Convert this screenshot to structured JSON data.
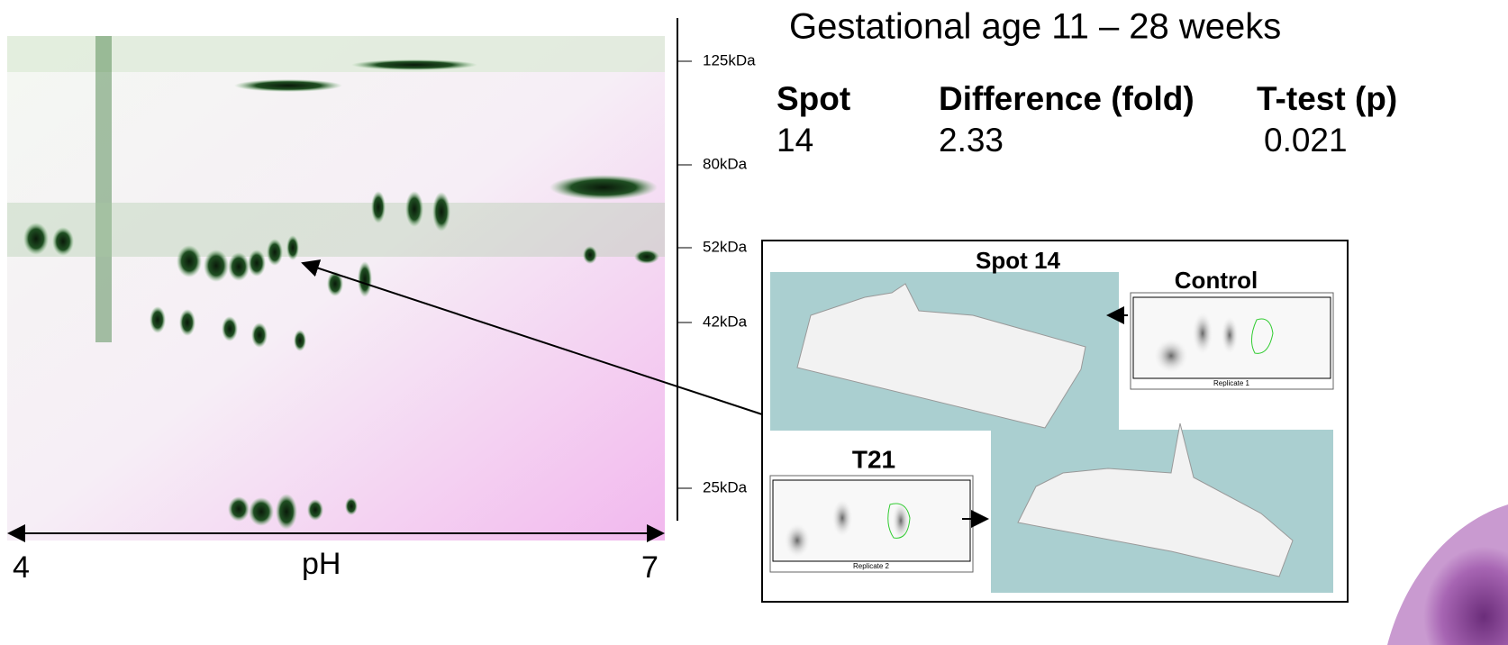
{
  "header": {
    "title": "Gestational age 11 – 28 weeks"
  },
  "table": {
    "columns": [
      "Spot",
      "Difference (fold)",
      "T-test (p)"
    ],
    "rows": [
      [
        "14",
        "2.33",
        "0.021"
      ]
    ]
  },
  "gel": {
    "mw_labels": [
      "125kDa",
      "80kDa",
      "52kDa",
      "42kDa",
      "25kDa"
    ],
    "ph_axis": {
      "left": "4",
      "label": "pH",
      "right": "7"
    }
  },
  "inset": {
    "title": "Spot 14",
    "control": {
      "label": "Control",
      "caption": "Replicate 1"
    },
    "t21": {
      "label": "T21",
      "caption": "Replicate 2"
    }
  }
}
